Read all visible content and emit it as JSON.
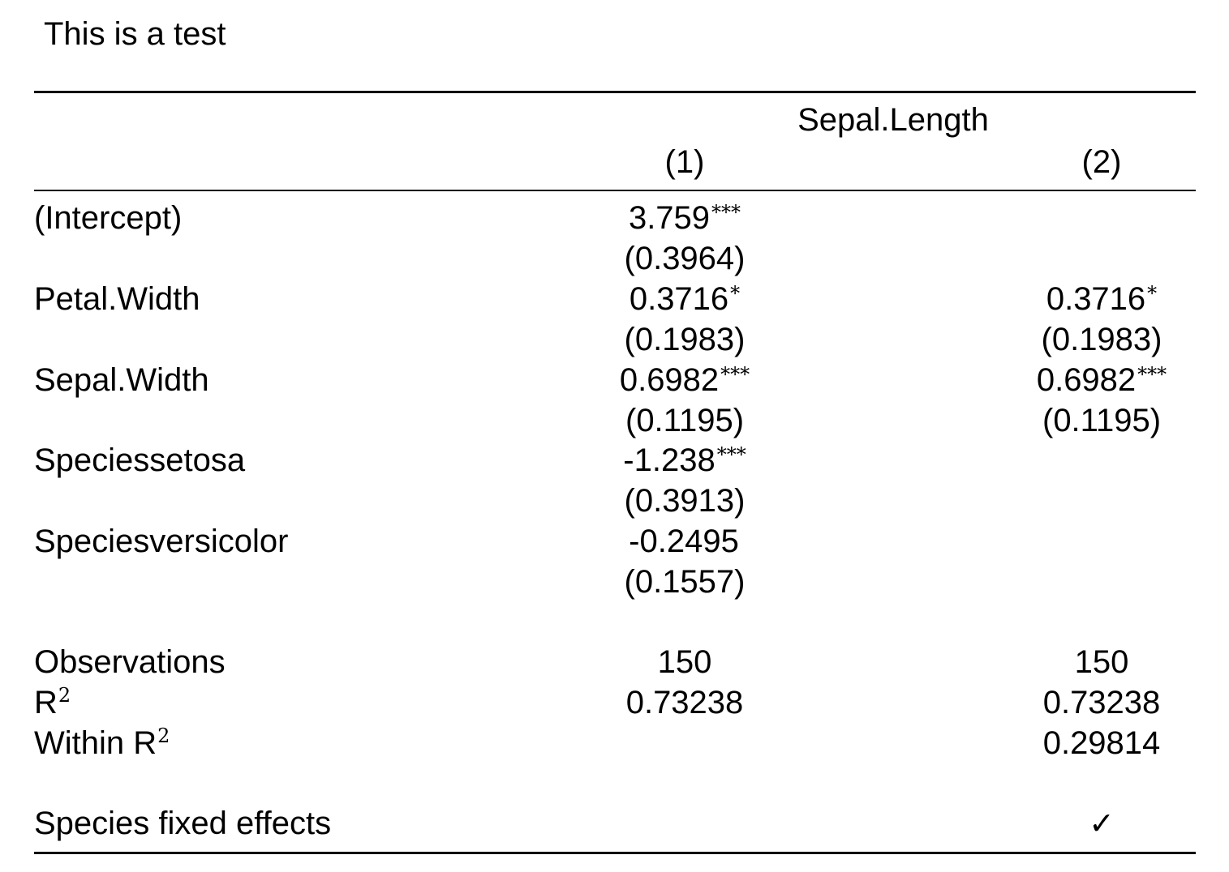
{
  "caption": "This is a test",
  "header": {
    "dependent_variable": "Sepal.Length",
    "columns": [
      "(1)",
      "(2)"
    ]
  },
  "rows": [
    {
      "label": "(Intercept)",
      "c1": {
        "coef": "3.759",
        "stars": "***",
        "se": "(0.3964)"
      },
      "c2": {
        "coef": "",
        "stars": "",
        "se": ""
      }
    },
    {
      "label": "Petal.Width",
      "c1": {
        "coef": "0.3716",
        "stars": "*",
        "se": "(0.1983)"
      },
      "c2": {
        "coef": "0.3716",
        "stars": "*",
        "se": "(0.1983)"
      }
    },
    {
      "label": "Sepal.Width",
      "c1": {
        "coef": "0.6982",
        "stars": "***",
        "se": "(0.1195)"
      },
      "c2": {
        "coef": "0.6982",
        "stars": "***",
        "se": "(0.1195)"
      }
    },
    {
      "label": "Speciessetosa",
      "c1": {
        "coef": "-1.238",
        "stars": "***",
        "se": "(0.3913)"
      },
      "c2": {
        "coef": "",
        "stars": "",
        "se": ""
      }
    },
    {
      "label": "Speciesversicolor",
      "c1": {
        "coef": "-0.2495",
        "stars": "",
        "se": "(0.1557)"
      },
      "c2": {
        "coef": "",
        "stars": "",
        "se": ""
      }
    }
  ],
  "stats": [
    {
      "label": "Observations",
      "sup": "",
      "c1": "150",
      "c2": "150"
    },
    {
      "label": "R",
      "sup": "2",
      "c1": "0.73238",
      "c2": "0.73238"
    },
    {
      "label": "Within R",
      "sup": "2",
      "c1": "",
      "c2": "0.29814"
    }
  ],
  "fixed_effects": [
    {
      "label": "Species fixed effects",
      "c1": "",
      "c2": "✓"
    }
  ]
}
